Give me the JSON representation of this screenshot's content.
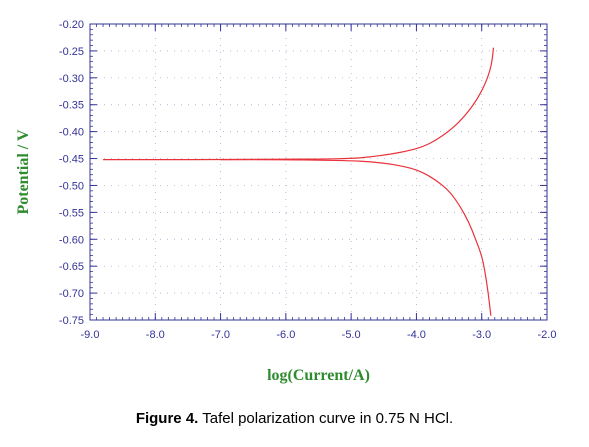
{
  "caption": {
    "label": "Figure 4.",
    "text": " Tafel polarization curve in 0.75 N HCl."
  },
  "chart_data": {
    "type": "line",
    "title": "",
    "xlabel": "log(Current/A)",
    "ylabel": "Potential / V",
    "xlim": [
      -9.0,
      -2.0
    ],
    "ylim": [
      -0.75,
      -0.2
    ],
    "x_ticks": [
      -9.0,
      -8.0,
      -7.0,
      -6.0,
      -5.0,
      -4.0,
      -3.0,
      -2.0
    ],
    "x_tick_labels": [
      "-9.0",
      "-8.0",
      "-7.0",
      "-6.0",
      "-5.0",
      "-4.0",
      "-3.0",
      "-2.0"
    ],
    "y_ticks": [
      -0.2,
      -0.25,
      -0.3,
      -0.35,
      -0.4,
      -0.45,
      -0.5,
      -0.55,
      -0.6,
      -0.65,
      -0.7,
      -0.75
    ],
    "y_tick_labels": [
      "-0.20",
      "-0.25",
      "-0.30",
      "-0.35",
      "-0.40",
      "-0.45",
      "-0.50",
      "-0.55",
      "-0.60",
      "-0.65",
      "-0.70",
      "-0.75"
    ],
    "grid": "dotted",
    "line_color": "#e8333a",
    "axis_color": "#333399",
    "series": [
      {
        "x": [
          -8.8,
          -8.0,
          -7.0,
          -6.0,
          -5.5,
          -5.0,
          -4.7,
          -4.4,
          -4.1,
          -3.9,
          -3.7,
          -3.5,
          -3.3,
          -3.1,
          -2.95,
          -2.85,
          -2.82
        ],
        "y": [
          -0.452,
          -0.452,
          -0.452,
          -0.451,
          -0.451,
          -0.45,
          -0.447,
          -0.442,
          -0.435,
          -0.428,
          -0.416,
          -0.399,
          -0.377,
          -0.346,
          -0.313,
          -0.278,
          -0.244
        ]
      },
      {
        "x": [
          -7.0,
          -6.0,
          -5.5,
          -5.0,
          -4.7,
          -4.4,
          -4.1,
          -3.9,
          -3.7,
          -3.5,
          -3.35,
          -3.2,
          -3.1,
          -3.0,
          -2.95,
          -2.9,
          -2.86
        ],
        "y": [
          -0.452,
          -0.452,
          -0.453,
          -0.454,
          -0.456,
          -0.46,
          -0.467,
          -0.476,
          -0.49,
          -0.51,
          -0.535,
          -0.567,
          -0.598,
          -0.63,
          -0.66,
          -0.7,
          -0.742
        ]
      }
    ]
  }
}
